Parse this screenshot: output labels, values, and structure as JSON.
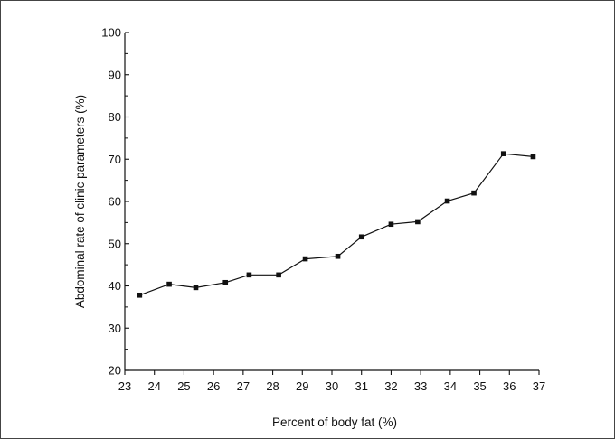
{
  "chart_data": {
    "type": "line",
    "xlabel": "Percent of body fat (%)",
    "ylabel": "Abdominal rate of clinic parameters (%)",
    "xlim": [
      23,
      37
    ],
    "ylim": [
      20,
      100
    ],
    "x_ticks": [
      "23",
      "24",
      "25",
      "26",
      "27",
      "28",
      "29",
      "30",
      "31",
      "32",
      "33",
      "34",
      "35",
      "36",
      "37"
    ],
    "y_ticks": [
      "20",
      "30",
      "40",
      "50",
      "60",
      "70",
      "80",
      "90",
      "100"
    ],
    "marker": "square",
    "line_color": "#111111",
    "grid": false,
    "series": [
      {
        "x": [
          23.5,
          24.5,
          25.4,
          26.4,
          27.2,
          28.2,
          29.1,
          30.2,
          31.0,
          32.0,
          32.9,
          33.9,
          34.8,
          35.8,
          36.8
        ],
        "values": [
          37.8,
          40.4,
          39.6,
          40.8,
          42.6,
          42.6,
          46.4,
          47.0,
          51.6,
          54.6,
          55.2,
          60.1,
          62.0,
          71.3,
          70.6
        ]
      }
    ]
  }
}
